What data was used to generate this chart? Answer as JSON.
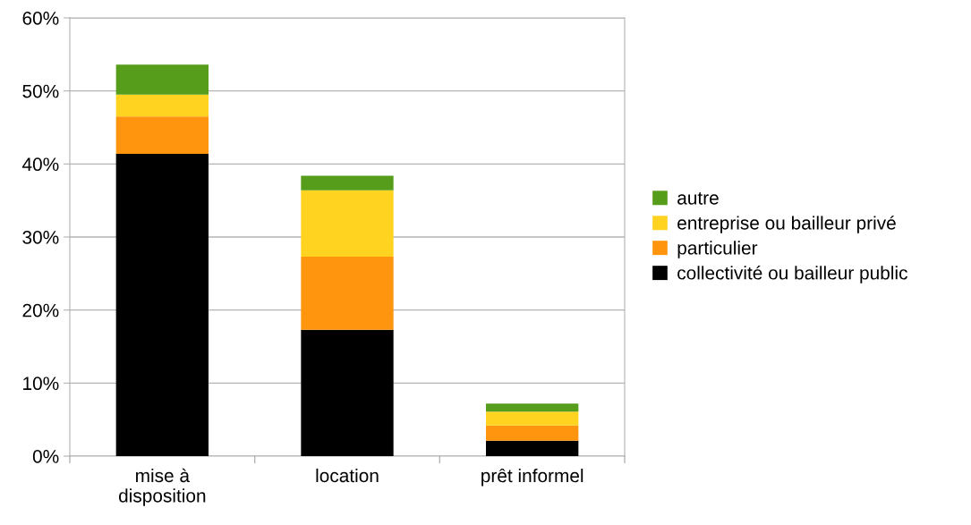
{
  "chart_data": {
    "type": "bar",
    "stacked": true,
    "categories": [
      "mise à\ndisposition",
      "location",
      "prêt informel"
    ],
    "series": [
      {
        "name": "collectivité ou bailleur public",
        "color": "#000000",
        "values": [
          41.4,
          17.3,
          2.1
        ]
      },
      {
        "name": "particulier",
        "color": "#ff950e",
        "values": [
          5.1,
          10.0,
          2.1
        ]
      },
      {
        "name": "entreprise ou bailleur privé",
        "color": "#ffd320",
        "values": [
          3.0,
          9.1,
          1.9
        ]
      },
      {
        "name": "autre",
        "color": "#579d1c",
        "values": [
          4.1,
          2.0,
          1.1
        ]
      }
    ],
    "ylim": [
      0,
      60
    ],
    "yticks": [
      {
        "value": 0,
        "label": "0%"
      },
      {
        "value": 10,
        "label": "10%"
      },
      {
        "value": 20,
        "label": "20%"
      },
      {
        "value": 30,
        "label": "30%"
      },
      {
        "value": 40,
        "label": "40%"
      },
      {
        "value": 50,
        "label": "50%"
      },
      {
        "value": 60,
        "label": "60%"
      }
    ],
    "grid": "y",
    "legend": "right"
  }
}
